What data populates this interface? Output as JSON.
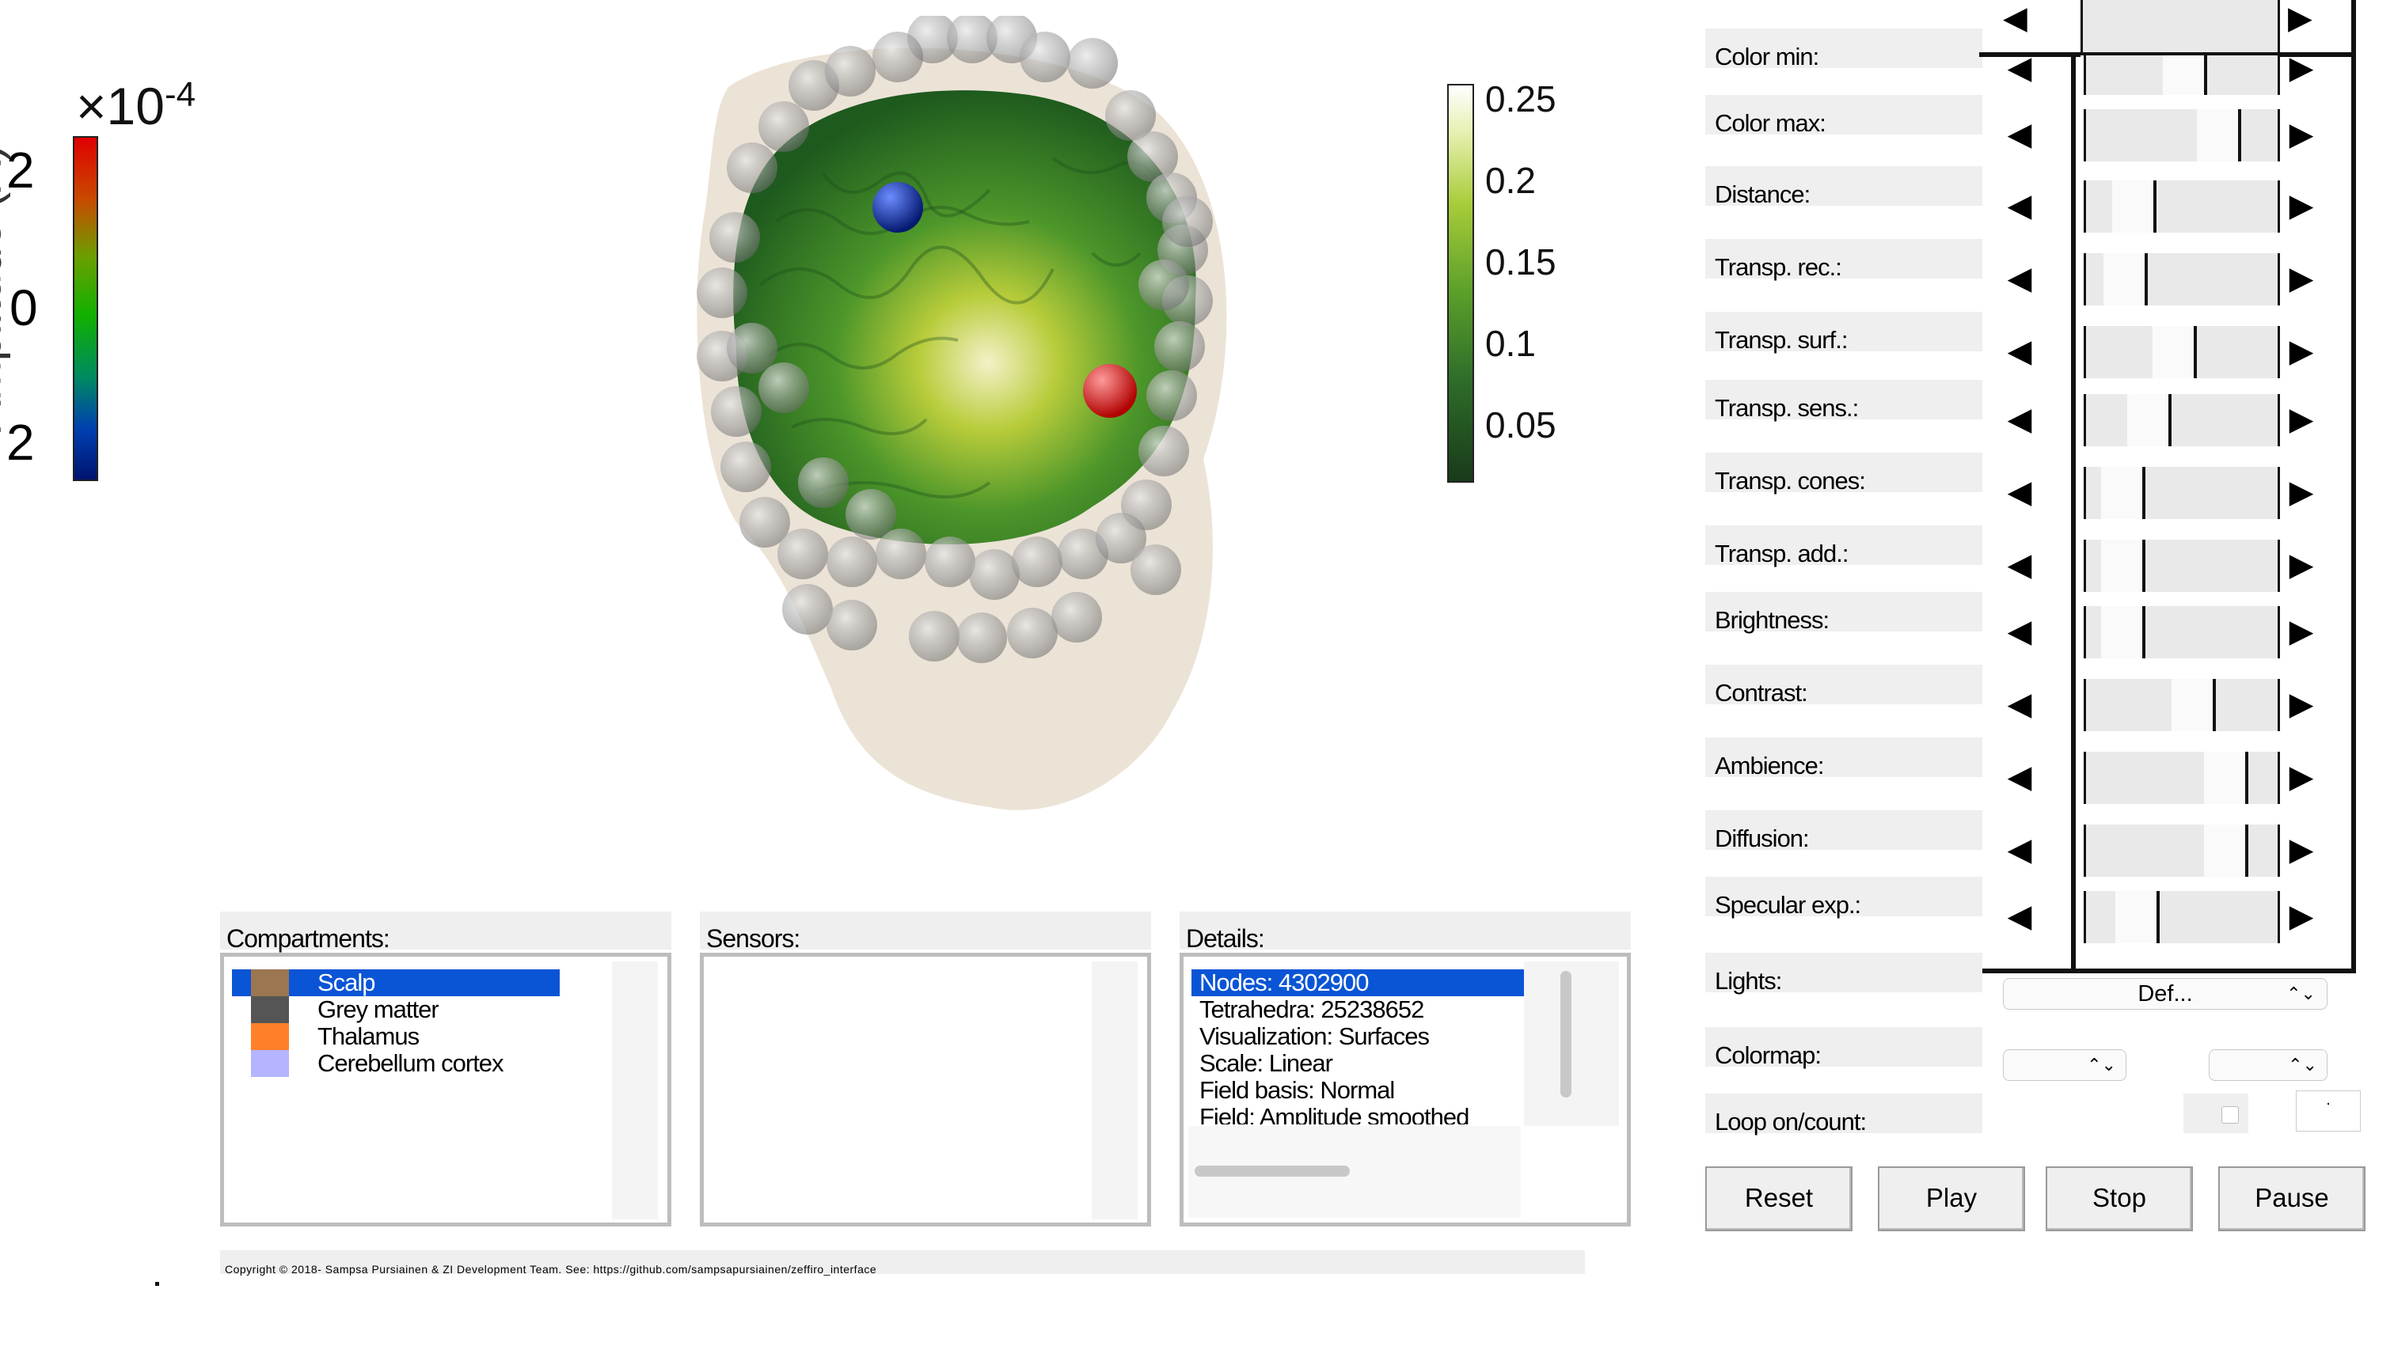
{
  "left_colorbar": {
    "multiplier": "×10",
    "exponent": "-4",
    "axis_label": "Amplitude (A)",
    "ticks": [
      "2",
      "0",
      "2"
    ]
  },
  "right_colorbar": {
    "ticks": [
      "0.25",
      "0.2",
      "0.15",
      "0.1",
      "0.05"
    ]
  },
  "params": [
    {
      "label": "Color min:",
      "value": 0.52
    },
    {
      "label": "Color max:",
      "value": 0.75
    },
    {
      "label": "Distance:",
      "value": 0.18
    },
    {
      "label": "Transp. rec.:",
      "value": 0.12
    },
    {
      "label": "Transp. surf.:",
      "value": 0.45
    },
    {
      "label": "Transp. sens.:",
      "value": 0.28
    },
    {
      "label": "Transp. cones:",
      "value": 0.1
    },
    {
      "label": "Transp. add.:",
      "value": 0.1
    },
    {
      "label": "Brightness:",
      "value": 0.1
    },
    {
      "label": "Contrast:",
      "value": 0.58
    },
    {
      "label": "Ambience:",
      "value": 0.8
    },
    {
      "label": "Diffusion:",
      "value": 0.8
    },
    {
      "label": "Specular exp.:",
      "value": 0.2
    }
  ],
  "lights": {
    "label": "Lights:",
    "value": "Def..."
  },
  "colormap": {
    "label": "Colormap:"
  },
  "loop": {
    "label": "Loop on/count:",
    "count": "."
  },
  "buttons": {
    "reset": "Reset",
    "play": "Play",
    "stop": "Stop",
    "pause": "Pause"
  },
  "compartments": {
    "title": "Compartments:",
    "items": [
      {
        "label": "Scalp",
        "color": "#9b7650",
        "selected": true
      },
      {
        "label": "Grey matter",
        "color": "#555555",
        "selected": false
      },
      {
        "label": "Thalamus",
        "color": "#ff7f2a",
        "selected": false
      },
      {
        "label": "Cerebellum cortex",
        "color": "#b4b4ff",
        "selected": false
      }
    ]
  },
  "sensors": {
    "title": "Sensors:"
  },
  "details": {
    "title": "Details:",
    "items": [
      "Nodes: 4302900",
      "Tetrahedra: 25238652",
      "Visualization: Surfaces",
      "Scale: Linear",
      "Field basis: Normal",
      "Field: Amplitude smoothed"
    ]
  },
  "copyright": "Copyright © 2018- Sampsa Pursiainen & ZI Development Team.  See: https://github.com/sampsapursiainen/zeffiro_interface",
  "colors": {
    "selection": "#0a55d6",
    "scalp": "#ece3d7",
    "brain": "#2f7a2a",
    "blue_dipole": "#0a2a9a",
    "red_dipole": "#e01010"
  }
}
